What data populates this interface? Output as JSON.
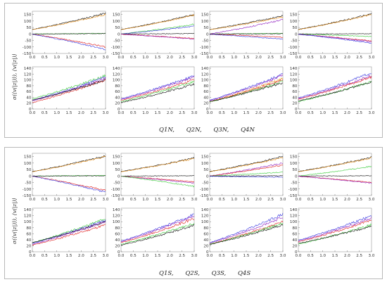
{
  "blocks": [
    {
      "id": "north",
      "ylabel": "σ(⟨v(|z|)⟩), ⟨v(|z|)⟩",
      "legend": [
        "Q1N,",
        "Q2N,",
        "Q3N,",
        "Q4N"
      ]
    },
    {
      "id": "south",
      "ylabel": "σ(⟨v(|z|)⟩), ⟨v(|z|)⟩",
      "legend": [
        "Q1S,",
        "Q2S,",
        "Q3S,",
        "Q4S"
      ]
    }
  ],
  "colors": {
    "black": "#111111",
    "orange": "#e8901a",
    "green": "#3ccc3c",
    "blue": "#3a3ae0",
    "red": "#e02020",
    "purple": "#9020c0"
  },
  "chart_data": [
    {
      "type": "line",
      "block": "north",
      "x_ticks": [
        "0.0",
        "0.5",
        "1.0",
        "1.5",
        "2.0",
        "2.5",
        "3.0"
      ],
      "xlim": [
        0,
        3
      ],
      "top_row": {
        "ylim": [
          -150,
          175
        ],
        "y_ticks": [
          "150",
          "100",
          "50",
          "0",
          "-50",
          "-100",
          "-150"
        ]
      },
      "bottom_row": {
        "ylim": [
          0,
          145
        ],
        "y_ticks": [
          "140",
          "120",
          "100",
          "80",
          "60",
          "40",
          "20",
          "0"
        ]
      },
      "panels": [
        {
          "row": "top",
          "series": [
            {
              "color": "black",
              "values": [
                35,
                160
              ]
            },
            {
              "color": "orange",
              "values": [
                33,
                150
              ]
            },
            {
              "color": "green",
              "values": [
                0,
                5
              ]
            },
            {
              "color": "black",
              "values": [
                0,
                3
              ]
            },
            {
              "color": "red",
              "values": [
                -2,
                -100
              ]
            },
            {
              "color": "blue",
              "values": [
                -2,
                -120
              ]
            }
          ]
        },
        {
          "row": "top",
          "series": [
            {
              "color": "black",
              "values": [
                35,
                150
              ]
            },
            {
              "color": "orange",
              "values": [
                33,
                145
              ]
            },
            {
              "color": "green",
              "values": [
                0,
                75
              ]
            },
            {
              "color": "blue",
              "values": [
                0,
                60
              ]
            },
            {
              "color": "black",
              "values": [
                0,
                3
              ]
            },
            {
              "color": "red",
              "values": [
                -2,
                -35
              ]
            },
            {
              "color": "purple",
              "values": [
                -2,
                -40
              ]
            }
          ]
        },
        {
          "row": "top",
          "series": [
            {
              "color": "black",
              "values": [
                35,
                140
              ]
            },
            {
              "color": "orange",
              "values": [
                33,
                130
              ]
            },
            {
              "color": "purple",
              "values": [
                0,
                110
              ]
            },
            {
              "color": "green",
              "values": [
                0,
                5
              ]
            },
            {
              "color": "black",
              "values": [
                0,
                2
              ]
            },
            {
              "color": "red",
              "values": [
                -2,
                -25
              ]
            },
            {
              "color": "blue",
              "values": [
                -2,
                -40
              ]
            }
          ]
        },
        {
          "row": "top",
          "series": [
            {
              "color": "black",
              "values": [
                35,
                155
              ]
            },
            {
              "color": "orange",
              "values": [
                33,
                150
              ]
            },
            {
              "color": "black",
              "values": [
                0,
                2
              ]
            },
            {
              "color": "green",
              "values": [
                -1,
                -20
              ]
            },
            {
              "color": "red",
              "values": [
                -2,
                -55
              ]
            },
            {
              "color": "purple",
              "values": [
                -2,
                -60
              ]
            },
            {
              "color": "blue",
              "values": [
                -2,
                -70
              ]
            }
          ]
        },
        {
          "row": "bottom",
          "series": [
            {
              "color": "green",
              "values": [
                35,
                115
              ]
            },
            {
              "color": "blue",
              "values": [
                30,
                110
              ]
            },
            {
              "color": "purple",
              "values": [
                28,
                105
              ]
            },
            {
              "color": "red",
              "values": [
                22,
                100
              ]
            },
            {
              "color": "black",
              "values": [
                30,
                100
              ]
            }
          ]
        },
        {
          "row": "bottom",
          "series": [
            {
              "color": "blue",
              "values": [
                35,
                115
              ]
            },
            {
              "color": "purple",
              "values": [
                33,
                110
              ]
            },
            {
              "color": "red",
              "values": [
                30,
                100
              ]
            },
            {
              "color": "green",
              "values": [
                25,
                95
              ]
            },
            {
              "color": "black",
              "values": [
                22,
                85
              ]
            }
          ]
        },
        {
          "row": "bottom",
          "series": [
            {
              "color": "blue",
              "values": [
                30,
                120
              ]
            },
            {
              "color": "purple",
              "values": [
                28,
                115
              ]
            },
            {
              "color": "orange",
              "values": [
                25,
                105
              ]
            },
            {
              "color": "red",
              "values": [
                25,
                100
              ]
            },
            {
              "color": "green",
              "values": [
                24,
                95
              ]
            },
            {
              "color": "black",
              "values": [
                25,
                90
              ]
            }
          ]
        },
        {
          "row": "bottom",
          "series": [
            {
              "color": "blue",
              "values": [
                38,
                125
              ]
            },
            {
              "color": "purple",
              "values": [
                35,
                115
              ]
            },
            {
              "color": "red",
              "values": [
                33,
                110
              ]
            },
            {
              "color": "green",
              "values": [
                25,
                95
              ]
            },
            {
              "color": "black",
              "values": [
                28,
                92
              ]
            }
          ]
        }
      ]
    },
    {
      "type": "line",
      "block": "south",
      "x_ticks": [
        "0.0",
        "0.5",
        "1.0",
        "1.5",
        "2.0",
        "2.5",
        "3.0"
      ],
      "xlim": [
        0,
        3
      ],
      "top_row": {
        "ylim": [
          -150,
          175
        ],
        "y_ticks": [
          "150",
          "100",
          "50",
          "0",
          "-50",
          "-100",
          "-150"
        ]
      },
      "bottom_row": {
        "ylim": [
          0,
          145
        ],
        "y_ticks": [
          "140",
          "120",
          "100",
          "80",
          "60",
          "40",
          "20",
          "0"
        ]
      },
      "panels": [
        {
          "row": "top",
          "series": [
            {
              "color": "black",
              "values": [
                35,
                155
              ]
            },
            {
              "color": "orange",
              "values": [
                33,
                150
              ]
            },
            {
              "color": "green",
              "values": [
                0,
                5
              ]
            },
            {
              "color": "black",
              "values": [
                0,
                2
              ]
            },
            {
              "color": "red",
              "values": [
                -2,
                -110
              ]
            },
            {
              "color": "blue",
              "values": [
                -2,
                -125
              ]
            }
          ]
        },
        {
          "row": "top",
          "series": [
            {
              "color": "black",
              "values": [
                35,
                140
              ]
            },
            {
              "color": "orange",
              "values": [
                33,
                135
              ]
            },
            {
              "color": "black",
              "values": [
                0,
                2
              ]
            },
            {
              "color": "red",
              "values": [
                -2,
                -45
              ]
            },
            {
              "color": "purple",
              "values": [
                -2,
                -55
              ]
            },
            {
              "color": "green",
              "values": [
                -2,
                -80
              ]
            }
          ]
        },
        {
          "row": "top",
          "series": [
            {
              "color": "black",
              "values": [
                35,
                150
              ]
            },
            {
              "color": "orange",
              "values": [
                33,
                140
              ]
            },
            {
              "color": "purple",
              "values": [
                0,
                100
              ]
            },
            {
              "color": "red",
              "values": [
                0,
                85
              ]
            },
            {
              "color": "green",
              "values": [
                0,
                30
              ]
            },
            {
              "color": "black",
              "values": [
                0,
                2
              ]
            },
            {
              "color": "blue",
              "values": [
                -2,
                -10
              ]
            }
          ]
        },
        {
          "row": "top",
          "series": [
            {
              "color": "black",
              "values": [
                35,
                145
              ]
            },
            {
              "color": "orange",
              "values": [
                33,
                140
              ]
            },
            {
              "color": "green",
              "values": [
                0,
                75
              ]
            },
            {
              "color": "black",
              "values": [
                0,
                2
              ]
            },
            {
              "color": "red",
              "values": [
                -2,
                -50
              ]
            },
            {
              "color": "purple",
              "values": [
                -2,
                -55
              ]
            }
          ]
        },
        {
          "row": "bottom",
          "series": [
            {
              "color": "green",
              "values": [
                30,
                110
              ]
            },
            {
              "color": "blue",
              "values": [
                28,
                105
              ]
            },
            {
              "color": "black",
              "values": [
                30,
                100
              ]
            },
            {
              "color": "purple",
              "values": [
                25,
                100
              ]
            },
            {
              "color": "red",
              "values": [
                22,
                90
              ]
            }
          ]
        },
        {
          "row": "bottom",
          "series": [
            {
              "color": "blue",
              "values": [
                35,
                125
              ]
            },
            {
              "color": "purple",
              "values": [
                33,
                120
              ]
            },
            {
              "color": "red",
              "values": [
                30,
                110
              ]
            },
            {
              "color": "green",
              "values": [
                25,
                95
              ]
            },
            {
              "color": "black",
              "values": [
                22,
                88
              ]
            }
          ]
        },
        {
          "row": "bottom",
          "series": [
            {
              "color": "blue",
              "values": [
                30,
                125
              ]
            },
            {
              "color": "purple",
              "values": [
                28,
                115
              ]
            },
            {
              "color": "red",
              "values": [
                25,
                100
              ]
            },
            {
              "color": "green",
              "values": [
                25,
                95
              ]
            },
            {
              "color": "black",
              "values": [
                24,
                90
              ]
            }
          ]
        },
        {
          "row": "bottom",
          "series": [
            {
              "color": "blue",
              "values": [
                38,
                120
              ]
            },
            {
              "color": "purple",
              "values": [
                35,
                112
              ]
            },
            {
              "color": "red",
              "values": [
                33,
                105
              ]
            },
            {
              "color": "green",
              "values": [
                25,
                90
              ]
            },
            {
              "color": "black",
              "values": [
                28,
                85
              ]
            }
          ]
        }
      ]
    }
  ]
}
